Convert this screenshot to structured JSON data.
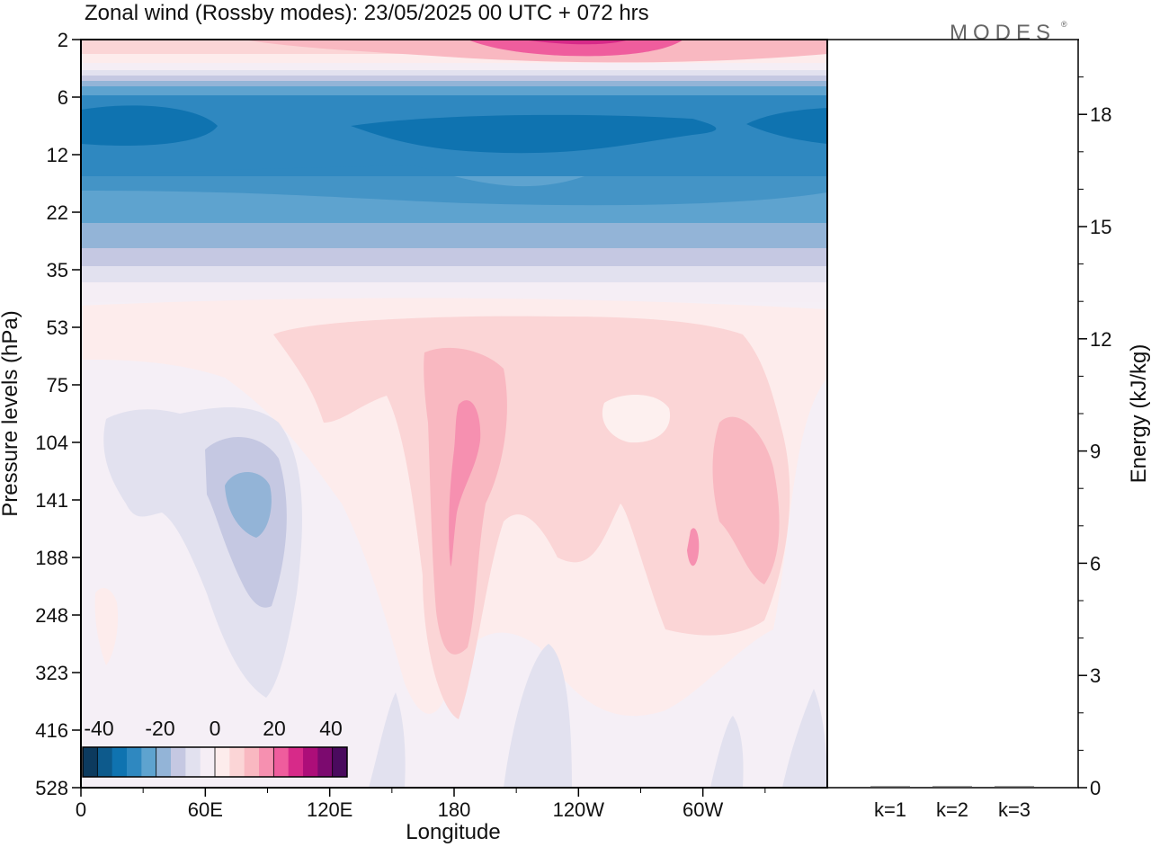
{
  "title": "Zonal wind (Rossby modes):  23/05/2025  00 UTC  + 072 hrs",
  "logo": "MODES",
  "chart_data": [
    {
      "type": "heatmap",
      "xlabel": "Longitude",
      "ylabel": "Pressure levels (hPa)",
      "x_ticks": [
        "0",
        "60E",
        "120E",
        "180",
        "120W",
        "60W"
      ],
      "x_tick_values": [
        0,
        60,
        120,
        180,
        240,
        300
      ],
      "xlim": [
        0,
        360
      ],
      "y_ticks": [
        "2",
        "6",
        "12",
        "22",
        "35",
        "53",
        "75",
        "104",
        "141",
        "188",
        "248",
        "323",
        "416",
        "528"
      ],
      "y_scale": "model levels (non-linear, top = 2 hPa)",
      "colorbar": {
        "tick_labels": [
          "-40",
          "-20",
          "0",
          "20",
          "40"
        ],
        "tick_values": [
          -40,
          -20,
          0,
          20,
          40
        ],
        "range": [
          -45,
          45
        ],
        "colors": [
          "#0c3a5e",
          "#0d5a8c",
          "#0f73b0",
          "#2f88c0",
          "#5ea3cf",
          "#93b4d7",
          "#c5c8e2",
          "#e2e1ef",
          "#f5eef5",
          "#fdecec",
          "#fbd5d6",
          "#f9b8c1",
          "#f690b0",
          "#ef5d9d",
          "#d72a89",
          "#ad0e79",
          "#7c0a6f",
          "#4a0a5e"
        ]
      },
      "field_description_levels": [
        {
          "level": "2",
          "value": 30
        },
        {
          "level": "6",
          "value": -18
        },
        {
          "level": "12",
          "value": -28
        },
        {
          "level": "22",
          "value": -22
        },
        {
          "level": "35",
          "value": -8
        },
        {
          "level": "53",
          "value": 4
        },
        {
          "level": "75",
          "value": 7
        },
        {
          "level": "104",
          "value": 8
        },
        {
          "level": "141",
          "value": 5
        },
        {
          "level": "188",
          "value": 4
        },
        {
          "level": "248",
          "value": 2
        },
        {
          "level": "323",
          "value": 1
        },
        {
          "level": "416",
          "value": 0
        },
        {
          "level": "528",
          "value": 0
        }
      ]
    },
    {
      "type": "bar",
      "ylabel": "Energy (kJ/kg)",
      "categories": [
        "k=1",
        "k=2",
        "k=3"
      ],
      "values": [
        0.02,
        0.02,
        0.02
      ],
      "ylim": [
        0,
        20
      ],
      "y_ticks": [
        "0",
        "3",
        "6",
        "9",
        "12",
        "15",
        "18"
      ],
      "y_tick_values": [
        0,
        3,
        6,
        9,
        12,
        15,
        18
      ]
    }
  ]
}
